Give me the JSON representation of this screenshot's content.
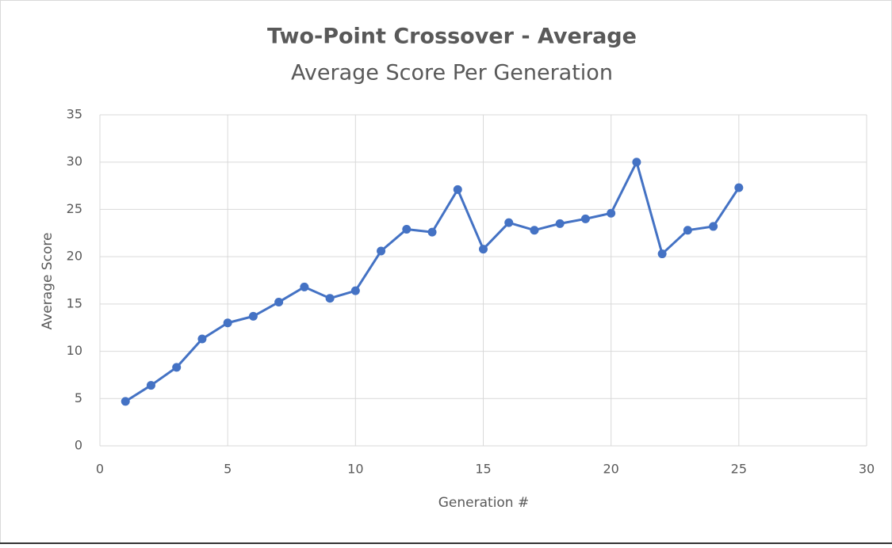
{
  "chart_data": {
    "type": "line",
    "title": "Two-Point Crossover - Average",
    "subtitle": "Average Score Per Generation",
    "x_label": "Generation #",
    "y_label": "Average Score",
    "x": [
      1,
      2,
      3,
      4,
      5,
      6,
      7,
      8,
      9,
      10,
      11,
      12,
      13,
      14,
      15,
      16,
      17,
      18,
      19,
      20,
      21,
      22,
      23,
      24,
      25
    ],
    "series": [
      {
        "color": "#4472c4",
        "values": [
          4.7,
          6.4,
          8.3,
          11.3,
          13.0,
          13.7,
          15.2,
          16.8,
          15.6,
          16.4,
          20.6,
          22.9,
          22.6,
          27.1,
          20.8,
          23.6,
          22.8,
          23.5,
          24.0,
          24.6,
          30.0,
          20.3,
          22.8,
          23.2,
          27.3
        ]
      }
    ],
    "xlim": [
      0,
      30
    ],
    "xticks": [
      0,
      5,
      10,
      15,
      20,
      25,
      30
    ],
    "ylim": [
      0,
      35
    ],
    "yticks": [
      0,
      5,
      10,
      15,
      20,
      25,
      30,
      35
    ],
    "grid": true
  }
}
